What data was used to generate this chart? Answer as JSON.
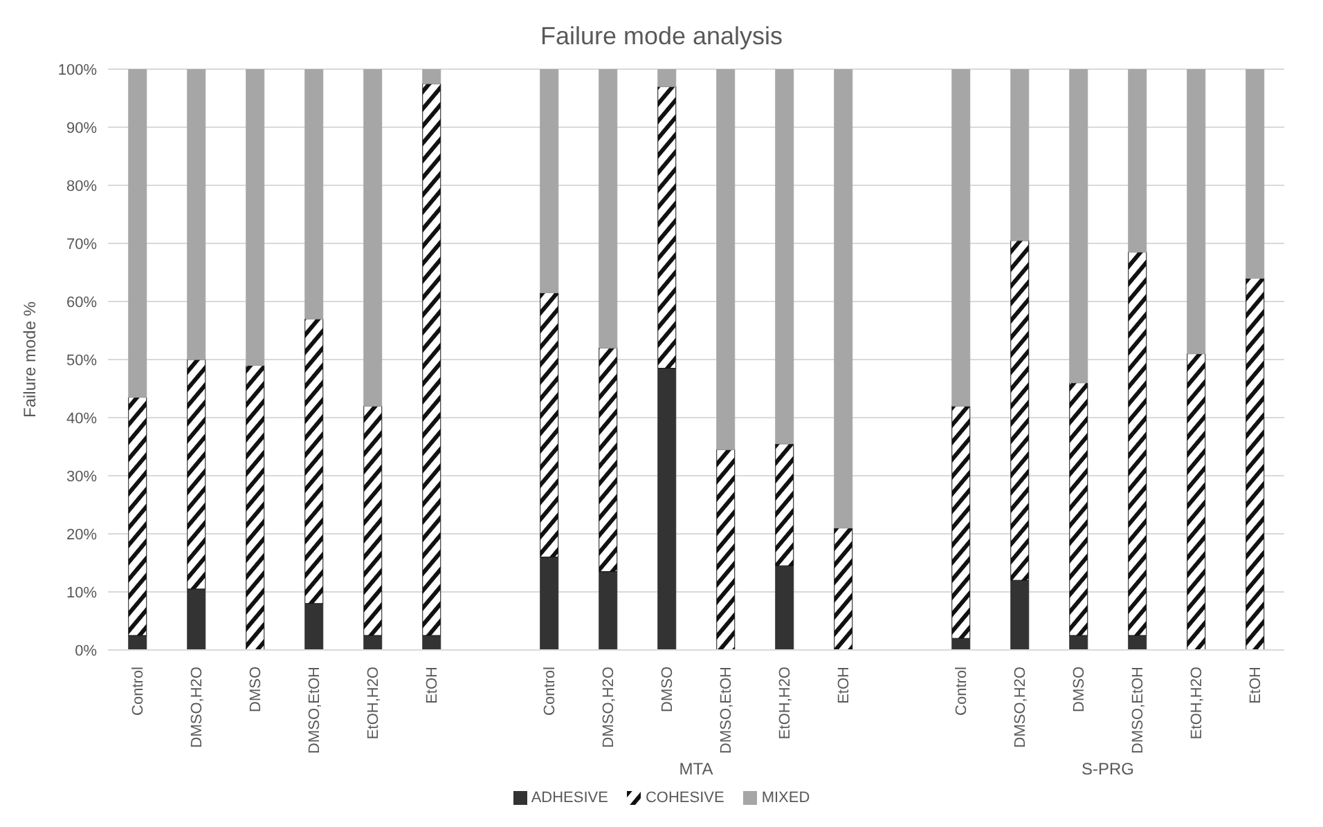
{
  "chart_data": {
    "type": "bar",
    "title": "Failure mode analysis",
    "ylabel": "Failure mode %",
    "stacked": true,
    "categories": [
      "Control",
      "DMSO,H2O",
      "DMSO",
      "DMSO,EtOH",
      "EtOH,H2O",
      "EtOH",
      "Control",
      "DMSO,H2O",
      "DMSO",
      "DMSO,EtOH",
      "EtOH,H2O",
      "EtOH",
      "Control",
      "DMSO,H2O",
      "DMSO",
      "DMSO,EtOH",
      "EtOH,H2O",
      "EtOH"
    ],
    "annotations": [
      "MTA",
      "S-PRG"
    ],
    "series": [
      {
        "name": "ADHESIVE",
        "color": "#333333",
        "values": [
          2.5,
          10.5,
          0,
          8,
          2.5,
          2.5,
          16,
          13.5,
          48.5,
          0,
          14.5,
          0,
          2,
          12,
          2.5,
          2.5,
          0,
          0
        ]
      },
      {
        "name": "COHESIVE",
        "color": "#111111",
        "values": [
          41,
          39.5,
          49,
          49,
          39.5,
          95,
          45.5,
          38.5,
          48.5,
          34.5,
          21,
          21,
          40,
          58.5,
          43.5,
          66,
          51,
          64
        ]
      },
      {
        "name": "MIXED",
        "color": "#a6a6a6",
        "values": [
          56.5,
          50,
          51,
          43,
          58,
          2.5,
          38.5,
          48,
          3,
          65.5,
          64.5,
          79,
          58,
          29.5,
          54,
          31.5,
          49,
          36
        ]
      }
    ],
    "ylim": [
      0,
      100
    ],
    "yticks": [
      {
        "value": 0,
        "label": "0%"
      },
      {
        "value": 10,
        "label": "10%"
      },
      {
        "value": 20,
        "label": "20%"
      },
      {
        "value": 30,
        "label": "30%"
      },
      {
        "value": 40,
        "label": "40%"
      },
      {
        "value": 50,
        "label": "50%"
      },
      {
        "value": 60,
        "label": "60%"
      },
      {
        "value": 70,
        "label": "70%"
      },
      {
        "value": 80,
        "label": "80%"
      },
      {
        "value": 90,
        "label": "90%"
      },
      {
        "value": 100,
        "label": "100%"
      }
    ],
    "grid": "y",
    "legend": "bottom"
  }
}
